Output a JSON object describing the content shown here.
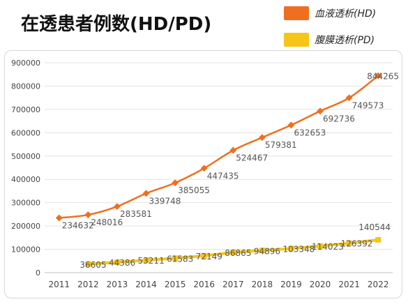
{
  "title": "在透患者例数(HD/PD)",
  "legend": [
    {
      "label": "血液透析(HD)",
      "color": "#ED7020"
    },
    {
      "label": "腹膜透析(PD)",
      "color": "#F5C518"
    }
  ],
  "chart_data": {
    "type": "line",
    "title": "在透患者例数(HD/PD)",
    "xlabel": "",
    "ylabel": "",
    "ylim": [
      0,
      900000
    ],
    "yticks": [
      "0",
      "100000",
      "200000",
      "300000",
      "400000",
      "500000",
      "600000",
      "700000",
      "800000",
      "900000"
    ],
    "categories": [
      "2011",
      "2012",
      "2013",
      "2014",
      "2015",
      "2016",
      "2017",
      "2018",
      "2019",
      "2020",
      "2021",
      "2022"
    ],
    "grid": true,
    "legend_position": "top-right",
    "series": [
      {
        "name": "血液透析(HD)",
        "color": "#ED7020",
        "x": [
          "2011",
          "2012",
          "2013",
          "2014",
          "2015",
          "2016",
          "2017",
          "2018",
          "2019",
          "2020",
          "2021",
          "2022"
        ],
        "values": [
          234632,
          248016,
          283581,
          339748,
          385055,
          447435,
          524467,
          579381,
          632653,
          692736,
          749573,
          844265
        ]
      },
      {
        "name": "腹膜透析(PD)",
        "color": "#F5C518",
        "x": [
          "2012",
          "2013",
          "2014",
          "2015",
          "2016",
          "2017",
          "2018",
          "2019",
          "2020",
          "2021",
          "2022"
        ],
        "values": [
          36605,
          44386,
          53211,
          61583,
          72149,
          86865,
          94896,
          103348,
          114023,
          126392,
          140544
        ]
      }
    ]
  }
}
